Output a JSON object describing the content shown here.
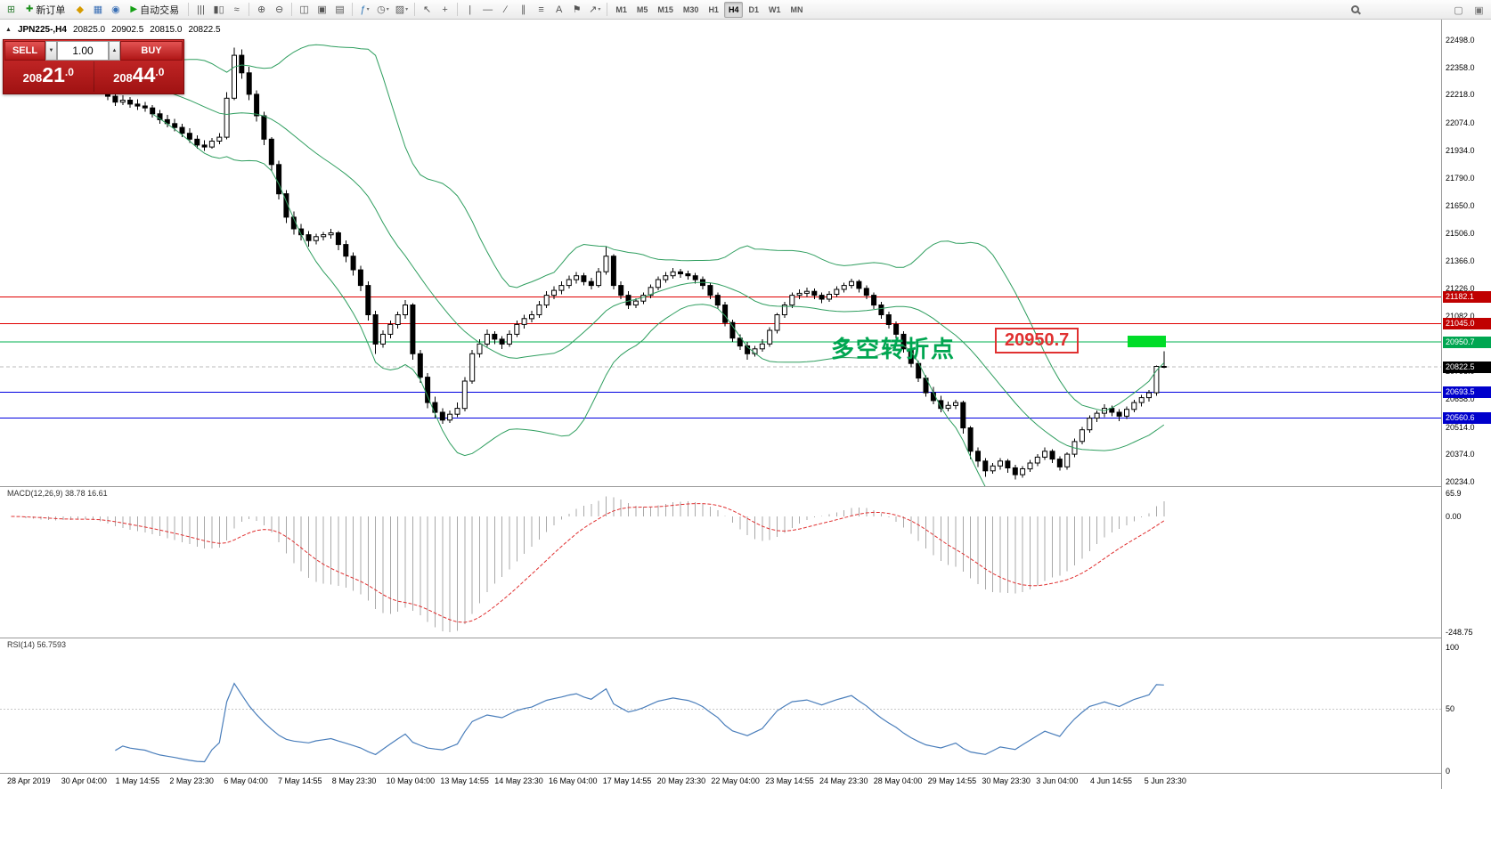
{
  "toolbar": {
    "left_icons": [
      {
        "name": "new-chart-icon",
        "glyph": "⊞",
        "color": "#2e7d32"
      }
    ],
    "new_order": {
      "label": "新订单",
      "icon_glyph": "✚",
      "icon_color": "#1a8f1a"
    },
    "window_icons": [
      {
        "name": "profiles-icon",
        "glyph": "◆",
        "color": "#d69b00"
      },
      {
        "name": "data-window-icon",
        "glyph": "▦",
        "color": "#3a6fb5"
      },
      {
        "name": "navigator-icon",
        "glyph": "◉",
        "color": "#3a6fb5"
      }
    ],
    "autotrading": {
      "label": "自动交易",
      "icon_glyph": "▶",
      "icon_color": "#15a015"
    },
    "chart_type_icons": [
      {
        "name": "bars-chart-icon",
        "glyph": "|||"
      },
      {
        "name": "candlestick-chart-icon",
        "glyph": "▮▯"
      },
      {
        "name": "line-chart-icon",
        "glyph": "≈"
      }
    ],
    "zoom_icons": [
      {
        "name": "zoom-in-icon",
        "glyph": "⊕"
      },
      {
        "name": "zoom-out-icon",
        "glyph": "⊖"
      }
    ],
    "layout_icons": [
      {
        "name": "tile-windows-icon",
        "glyph": "◫"
      },
      {
        "name": "cascade-windows-icon",
        "glyph": "▣"
      },
      {
        "name": "arrange-windows-icon",
        "glyph": "▤"
      }
    ],
    "dropdown_icons": [
      {
        "name": "indicators-icon",
        "glyph": "ƒ",
        "color": "#2e75b6",
        "dropdown": true
      },
      {
        "name": "periods-icon",
        "glyph": "◷",
        "dropdown": true
      },
      {
        "name": "templates-icon",
        "glyph": "▨",
        "dropdown": true
      }
    ],
    "cursor_icons": [
      {
        "name": "cursor-icon",
        "glyph": "↖"
      },
      {
        "name": "crosshair-icon",
        "glyph": "+"
      }
    ],
    "draw_icons": [
      {
        "name": "vertical-line-icon",
        "glyph": "|"
      },
      {
        "name": "horizontal-line-icon",
        "glyph": "—"
      },
      {
        "name": "trendline-icon",
        "glyph": "∕"
      },
      {
        "name": "channel-icon",
        "glyph": "∥"
      },
      {
        "name": "fibonacci-icon",
        "glyph": "≡"
      },
      {
        "name": "text-icon",
        "glyph": "A"
      },
      {
        "name": "label-icon",
        "glyph": "⚑"
      },
      {
        "name": "arrows-icon",
        "glyph": "↗",
        "dropdown": true
      }
    ],
    "timeframes": [
      {
        "label": "M1",
        "active": false
      },
      {
        "label": "M5",
        "active": false
      },
      {
        "label": "M15",
        "active": false
      },
      {
        "label": "M30",
        "active": false
      },
      {
        "label": "H1",
        "active": false
      },
      {
        "label": "H4",
        "active": true
      },
      {
        "label": "D1",
        "active": false
      },
      {
        "label": "W1",
        "active": false
      },
      {
        "label": "MN",
        "active": false
      }
    ],
    "far_icons": [
      {
        "name": "minimize-chart-icon",
        "glyph": "▢"
      },
      {
        "name": "restore-chart-icon",
        "glyph": "▣"
      }
    ]
  },
  "chart_info": {
    "collapse_icon": "▲",
    "title": "JPN225-,H4",
    "open": "20825.0",
    "high": "20902.5",
    "low": "20815.0",
    "close": "20822.5"
  },
  "trade_panel": {
    "sell_label": "SELL",
    "buy_label": "BUY",
    "volume": "1.00",
    "spin_down": "▼",
    "spin_up": "▲",
    "sell_price": {
      "pre": "208",
      "big": "21",
      "frac": ".0"
    },
    "buy_price": {
      "pre": "208",
      "big": "44",
      "frac": ".0"
    }
  },
  "annotations": {
    "turning_point_text": "多空转折点",
    "turning_point_color": "#00a651",
    "price_callout": "20950.7",
    "price_callout_color": "#e03131",
    "highlight_rect_color": "#00dc28"
  },
  "chart_data": {
    "type": "candlestick",
    "symbol": "JPN225-",
    "timeframe": "H4",
    "ohlc_current": {
      "open": 20825.0,
      "high": 20902.5,
      "low": 20815.0,
      "close": 20822.5
    },
    "price_axis": {
      "min": 20234,
      "max": 22498,
      "ticks": [
        22498,
        22358,
        22218,
        22074,
        21934,
        21790,
        21650,
        21506,
        21366,
        21226,
        21082,
        20938,
        20798,
        20658,
        20514,
        20374,
        20234
      ]
    },
    "candles": [
      [
        22360,
        22385,
        22320,
        22340
      ],
      [
        22340,
        22360,
        22300,
        22320
      ],
      [
        22320,
        22340,
        22285,
        22300
      ],
      [
        22300,
        22330,
        22290,
        22310
      ],
      [
        22310,
        22325,
        22280,
        22295
      ],
      [
        22295,
        22315,
        22275,
        22290
      ],
      [
        22290,
        22320,
        22280,
        22300
      ],
      [
        22300,
        22330,
        22290,
        22310
      ],
      [
        22310,
        22335,
        22295,
        22315
      ],
      [
        22315,
        22340,
        22300,
        22320
      ],
      [
        22320,
        22345,
        22295,
        22320
      ],
      [
        22320,
        22335,
        22260,
        22280
      ],
      [
        22280,
        22300,
        22230,
        22250
      ],
      [
        22250,
        22270,
        22190,
        22210
      ],
      [
        22210,
        22240,
        22160,
        22180
      ],
      [
        22180,
        22215,
        22165,
        22190
      ],
      [
        22190,
        22205,
        22150,
        22170
      ],
      [
        22170,
        22195,
        22140,
        22160
      ],
      [
        22160,
        22180,
        22130,
        22150
      ],
      [
        22150,
        22165,
        22100,
        22120
      ],
      [
        22120,
        22140,
        22070,
        22090
      ],
      [
        22090,
        22115,
        22050,
        22070
      ],
      [
        22070,
        22095,
        22030,
        22050
      ],
      [
        22050,
        22070,
        22000,
        22020
      ],
      [
        22020,
        22045,
        21970,
        21990
      ],
      [
        21990,
        22010,
        21940,
        21960
      ],
      [
        21960,
        21985,
        21930,
        21950
      ],
      [
        21950,
        21995,
        21940,
        21980
      ],
      [
        21980,
        22020,
        21965,
        22000
      ],
      [
        22000,
        22230,
        21990,
        22200
      ],
      [
        22200,
        22460,
        22190,
        22420
      ],
      [
        22420,
        22450,
        22300,
        22330
      ],
      [
        22330,
        22360,
        22190,
        22220
      ],
      [
        22220,
        22240,
        22080,
        22110
      ],
      [
        22110,
        22130,
        21960,
        21990
      ],
      [
        21990,
        22000,
        21830,
        21860
      ],
      [
        21860,
        21880,
        21680,
        21710
      ],
      [
        21710,
        21730,
        21560,
        21590
      ],
      [
        21590,
        21620,
        21500,
        21530
      ],
      [
        21530,
        21555,
        21470,
        21500
      ],
      [
        21500,
        21520,
        21440,
        21470
      ],
      [
        21470,
        21505,
        21450,
        21490
      ],
      [
        21490,
        21515,
        21470,
        21500
      ],
      [
        21500,
        21530,
        21480,
        21510
      ],
      [
        21510,
        21520,
        21420,
        21450
      ],
      [
        21450,
        21470,
        21360,
        21390
      ],
      [
        21390,
        21410,
        21290,
        21320
      ],
      [
        21320,
        21340,
        21210,
        21240
      ],
      [
        21240,
        21260,
        21060,
        21090
      ],
      [
        21090,
        21110,
        20890,
        20940
      ],
      [
        20940,
        21010,
        20920,
        20990
      ],
      [
        20990,
        21060,
        20970,
        21040
      ],
      [
        21040,
        21105,
        21020,
        21090
      ],
      [
        21090,
        21165,
        21070,
        21140
      ],
      [
        21140,
        21150,
        20860,
        20890
      ],
      [
        20890,
        20910,
        20740,
        20770
      ],
      [
        20770,
        20790,
        20610,
        20640
      ],
      [
        20640,
        20670,
        20560,
        20590
      ],
      [
        20590,
        20610,
        20530,
        20550
      ],
      [
        20550,
        20600,
        20535,
        20580
      ],
      [
        20580,
        20640,
        20565,
        20610
      ],
      [
        20610,
        20770,
        20595,
        20750
      ],
      [
        20750,
        20910,
        20735,
        20890
      ],
      [
        20890,
        20965,
        20870,
        20940
      ],
      [
        20940,
        21015,
        20925,
        20990
      ],
      [
        20990,
        21005,
        20940,
        20965
      ],
      [
        20965,
        20980,
        20915,
        20940
      ],
      [
        20940,
        21010,
        20925,
        20990
      ],
      [
        20990,
        21060,
        20975,
        21040
      ],
      [
        21040,
        21090,
        21020,
        21070
      ],
      [
        21070,
        21110,
        21050,
        21090
      ],
      [
        21090,
        21160,
        21075,
        21140
      ],
      [
        21140,
        21210,
        21125,
        21190
      ],
      [
        21190,
        21235,
        21170,
        21215
      ],
      [
        21215,
        21260,
        21195,
        21240
      ],
      [
        21240,
        21290,
        21225,
        21270
      ],
      [
        21270,
        21310,
        21250,
        21290
      ],
      [
        21290,
        21305,
        21240,
        21260
      ],
      [
        21260,
        21280,
        21220,
        21240
      ],
      [
        21240,
        21330,
        21230,
        21310
      ],
      [
        21310,
        21440,
        21295,
        21390
      ],
      [
        21390,
        21400,
        21220,
        21240
      ],
      [
        21240,
        21260,
        21170,
        21190
      ],
      [
        21190,
        21210,
        21120,
        21140
      ],
      [
        21140,
        21175,
        21125,
        21160
      ],
      [
        21160,
        21205,
        21145,
        21190
      ],
      [
        21190,
        21245,
        21175,
        21230
      ],
      [
        21230,
        21285,
        21215,
        21270
      ],
      [
        21270,
        21310,
        21255,
        21290
      ],
      [
        21290,
        21330,
        21275,
        21310
      ],
      [
        21310,
        21325,
        21280,
        21300
      ],
      [
        21300,
        21315,
        21270,
        21290
      ],
      [
        21290,
        21305,
        21250,
        21270
      ],
      [
        21270,
        21285,
        21220,
        21240
      ],
      [
        21240,
        21255,
        21170,
        21190
      ],
      [
        21190,
        21205,
        21120,
        21140
      ],
      [
        21140,
        21155,
        21030,
        21050
      ],
      [
        21050,
        21065,
        20950,
        20970
      ],
      [
        20970,
        20990,
        20910,
        20930
      ],
      [
        20930,
        20950,
        20860,
        20890
      ],
      [
        20890,
        20930,
        20875,
        20915
      ],
      [
        20915,
        20965,
        20900,
        20940
      ],
      [
        20940,
        21025,
        20925,
        21010
      ],
      [
        21010,
        21100,
        20995,
        21090
      ],
      [
        21090,
        21155,
        21075,
        21140
      ],
      [
        21140,
        21205,
        21125,
        21190
      ],
      [
        21190,
        21220,
        21170,
        21200
      ],
      [
        21200,
        21230,
        21180,
        21210
      ],
      [
        21210,
        21225,
        21170,
        21190
      ],
      [
        21190,
        21205,
        21150,
        21170
      ],
      [
        21170,
        21210,
        21155,
        21195
      ],
      [
        21195,
        21235,
        21180,
        21220
      ],
      [
        21220,
        21255,
        21205,
        21240
      ],
      [
        21240,
        21275,
        21225,
        21260
      ],
      [
        21260,
        21270,
        21205,
        21225
      ],
      [
        21225,
        21240,
        21170,
        21190
      ],
      [
        21190,
        21205,
        21120,
        21140
      ],
      [
        21140,
        21155,
        21070,
        21090
      ],
      [
        21090,
        21105,
        21020,
        21040
      ],
      [
        21040,
        21055,
        20970,
        20990
      ],
      [
        20990,
        21005,
        20895,
        20915
      ],
      [
        20915,
        20930,
        20820,
        20840
      ],
      [
        20840,
        20855,
        20745,
        20765
      ],
      [
        20765,
        20780,
        20670,
        20690
      ],
      [
        20690,
        20720,
        20630,
        20650
      ],
      [
        20650,
        20675,
        20590,
        20610
      ],
      [
        20610,
        20645,
        20595,
        20625
      ],
      [
        20625,
        20655,
        20605,
        20640
      ],
      [
        20640,
        20650,
        20480,
        20510
      ],
      [
        20510,
        20520,
        20350,
        20390
      ],
      [
        20390,
        20410,
        20310,
        20340
      ],
      [
        20340,
        20355,
        20260,
        20290
      ],
      [
        20290,
        20330,
        20275,
        20315
      ],
      [
        20315,
        20355,
        20295,
        20340
      ],
      [
        20340,
        20350,
        20280,
        20305
      ],
      [
        20305,
        20320,
        20245,
        20270
      ],
      [
        20270,
        20315,
        20255,
        20300
      ],
      [
        20300,
        20345,
        20285,
        20330
      ],
      [
        20330,
        20375,
        20315,
        20360
      ],
      [
        20360,
        20410,
        20345,
        20390
      ],
      [
        20390,
        20400,
        20330,
        20350
      ],
      [
        20350,
        20365,
        20290,
        20310
      ],
      [
        20310,
        20385,
        20295,
        20375
      ],
      [
        20375,
        20455,
        20360,
        20440
      ],
      [
        20440,
        20515,
        20425,
        20500
      ],
      [
        20500,
        20575,
        20485,
        20560
      ],
      [
        20560,
        20600,
        20540,
        20585
      ],
      [
        20585,
        20630,
        20565,
        20610
      ],
      [
        20610,
        20625,
        20570,
        20590
      ],
      [
        20590,
        20605,
        20545,
        20570
      ],
      [
        20570,
        20620,
        20555,
        20605
      ],
      [
        20605,
        20655,
        20590,
        20640
      ],
      [
        20640,
        20680,
        20620,
        20665
      ],
      [
        20665,
        20705,
        20645,
        20690
      ],
      [
        20690,
        20830,
        20675,
        20825
      ],
      [
        20825,
        20902.5,
        20815,
        20822.5
      ]
    ],
    "overlays": {
      "bollinger_bands": {
        "period": 20,
        "deviation": 2,
        "color": "#2f9e5f"
      }
    },
    "horizontal_lines": [
      {
        "price": 21182.1,
        "color": "#e00000",
        "tag_bg": "#c00000"
      },
      {
        "price": 21045.0,
        "color": "#e00000",
        "tag_bg": "#c00000"
      },
      {
        "price": 20950.7,
        "color": "#00b050",
        "tag_bg": "#00a651"
      },
      {
        "price": 20693.5,
        "color": "#0000e0",
        "tag_bg": "#0000cc"
      },
      {
        "price": 20560.6,
        "color": "#0000e0",
        "tag_bg": "#0000cc"
      }
    ],
    "current_price": {
      "value": 20822.5,
      "tag_bg": "#000000",
      "line_color": "#bbbbbb"
    },
    "macd": {
      "label": "MACD(12,26,9)",
      "values_text": "38.78 16.61",
      "fast": 12,
      "slow": 26,
      "signal": 9,
      "axis_labels": [
        "65.9",
        "0.00",
        "-248.75"
      ],
      "histogram_color": "#a8a8a8",
      "signal_color": "#e03131"
    },
    "rsi": {
      "label": "RSI(14)",
      "value_text": "56.7593",
      "period": 14,
      "axis_labels": [
        "100",
        "50",
        "0"
      ],
      "line_color": "#4a7ebb"
    },
    "time_axis": [
      "28 Apr 2019",
      "30 Apr 04:00",
      "1 May 14:55",
      "2 May 23:30",
      "6 May 04:00",
      "7 May 14:55",
      "8 May 23:30",
      "10 May 04:00",
      "13 May 14:55",
      "14 May 23:30",
      "16 May 04:00",
      "17 May 14:55",
      "20 May 23:30",
      "22 May 04:00",
      "23 May 14:55",
      "24 May 23:30",
      "28 May 04:00",
      "29 May 14:55",
      "30 May 23:30",
      "3 Jun 04:00",
      "4 Jun 14:55",
      "5 Jun 23:30"
    ]
  }
}
